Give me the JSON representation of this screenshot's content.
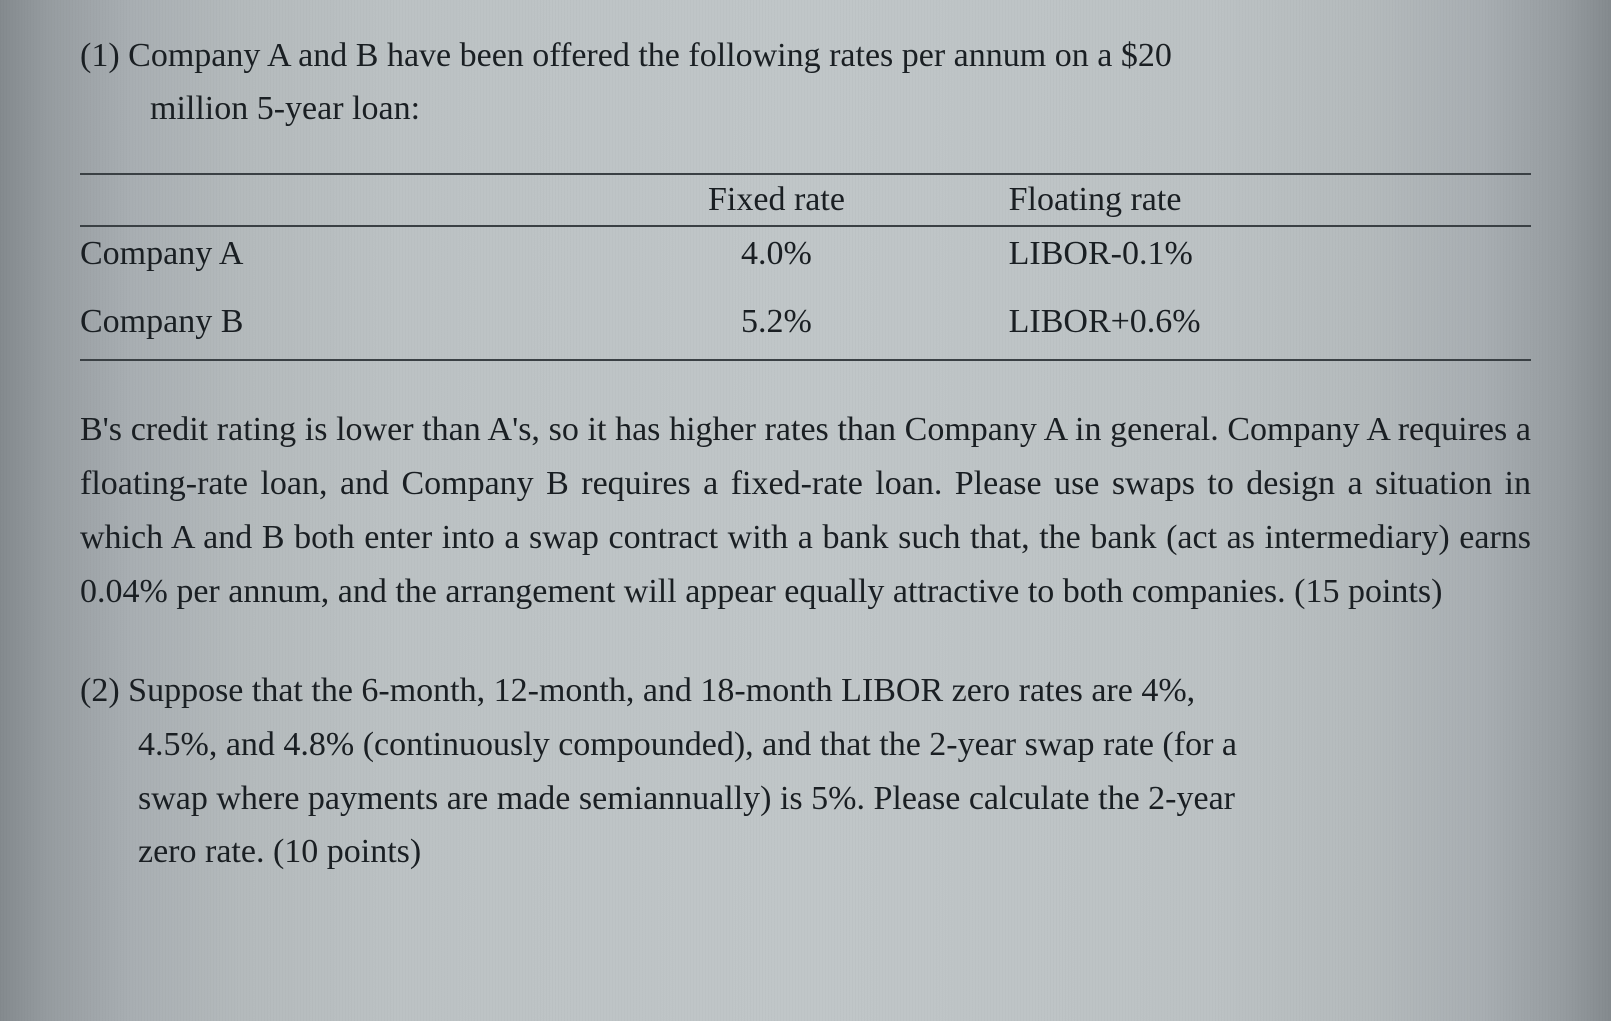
{
  "q1": {
    "number": "(1)",
    "intro_line1": "Company A and B have been offered the following rates per annum on a $20",
    "intro_line2": "million 5-year loan:",
    "table": {
      "columns": [
        "",
        "Fixed rate",
        "Floating rate"
      ],
      "rows": [
        [
          "Company A",
          "4.0%",
          "LIBOR-0.1%"
        ],
        [
          "Company B",
          "5.2%",
          "LIBOR+0.6%"
        ]
      ],
      "border_color": "#3a4044"
    },
    "body": "B's credit rating is lower than A's, so it has higher rates than Company A in general. Company A requires a floating-rate loan, and Company B requires a fixed-rate loan. Please use swaps to design a situation in which A and B both enter into a swap contract with a bank such that, the bank (act as intermediary) earns 0.04% per annum, and the arrangement will appear equally attractive to both companies. (15 points)"
  },
  "q2": {
    "number": "(2)",
    "line1": "Suppose that the 6-month, 12-month, and 18-month LIBOR zero rates are 4%,",
    "line2": "4.5%, and 4.8% (continuously compounded), and that the 2-year swap rate (for a",
    "line3": "swap where payments are made semiannually) is 5%. Please calculate the 2-year",
    "line4": "zero rate. (10 points)"
  },
  "style": {
    "font_family": "Times New Roman",
    "font_size_pt": 26,
    "text_color": "#1a1f23",
    "background_gradient": [
      "#848a8e",
      "#c0c6c8",
      "#848a8e"
    ]
  }
}
